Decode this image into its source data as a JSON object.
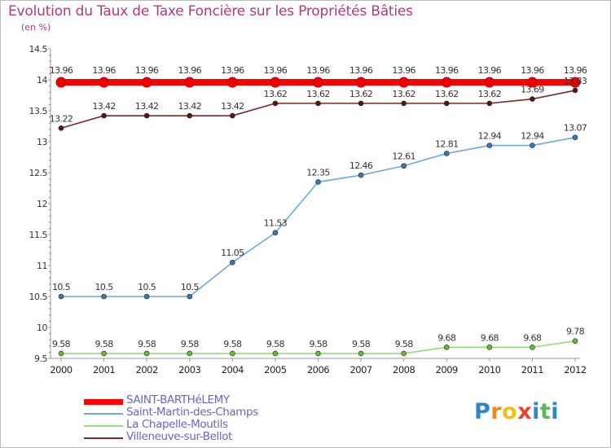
{
  "title": "Evolution du Taux de Taxe Foncière sur les Propriétés Bâties",
  "unit": "(en %)",
  "logo": {
    "text": "Proxiti",
    "letters": [
      "P",
      "r",
      "o",
      "x",
      "i",
      "t",
      "i"
    ],
    "colors": [
      "#2f86c8",
      "#f08a1c",
      "#e8c31a",
      "#e8452c",
      "#2f86c8",
      "#5cb85c",
      "#2f86c8"
    ]
  },
  "chart_data": {
    "type": "line",
    "title": "Evolution du Taux de Taxe Foncière sur les Propriétés Bâties",
    "ylabel": "(en %)",
    "xlabel": "",
    "ylim": [
      9.5,
      14.5
    ],
    "yticks": [
      "9.5",
      "10",
      "10.5",
      "11",
      "11.5",
      "12",
      "12.5",
      "13",
      "13.5",
      "14",
      "14.5"
    ],
    "categories": [
      "2000",
      "2001",
      "2002",
      "2003",
      "2004",
      "2005",
      "2006",
      "2007",
      "2008",
      "2009",
      "2010",
      "2011",
      "2012"
    ],
    "series": [
      {
        "name": "SAINT-BARTHéLEMY",
        "color": "#ff0000",
        "dot": "#ee0000",
        "thick": true,
        "values": [
          13.96,
          13.96,
          13.96,
          13.96,
          13.96,
          13.96,
          13.96,
          13.96,
          13.96,
          13.96,
          13.96,
          13.96,
          13.96
        ],
        "labels": [
          "13.96",
          "13.96",
          "13.96",
          "13.96",
          "13.96",
          "13.96",
          "13.96",
          "13.96",
          "13.96",
          "13.96",
          "13.96",
          "13.96",
          "13.96"
        ]
      },
      {
        "name": "Saint-Martin-des-Champs",
        "color": "#6fa8dc",
        "dot": "#3c78b4",
        "thick": false,
        "values": [
          10.5,
          10.5,
          10.5,
          10.5,
          11.05,
          11.53,
          12.35,
          12.46,
          12.61,
          12.81,
          12.94,
          12.94,
          13.07
        ],
        "labels": [
          "10.5",
          "10.5",
          "10.5",
          "10.5",
          "11.05",
          "11.53",
          "12.35",
          "12.46",
          "12.61",
          "12.81",
          "12.94",
          "12.94",
          "13.07"
        ]
      },
      {
        "name": "La Chapelle-Moutils",
        "color": "#99dd77",
        "dot": "#66bb33",
        "thick": false,
        "values": [
          9.58,
          9.58,
          9.58,
          9.58,
          9.58,
          9.58,
          9.58,
          9.58,
          9.58,
          9.68,
          9.68,
          9.68,
          9.78
        ],
        "labels": [
          "9.58",
          "9.58",
          "9.58",
          "9.58",
          "9.58",
          "9.58",
          "9.58",
          "9.58",
          "9.58",
          "9.68",
          "9.68",
          "9.68",
          "9.78"
        ]
      },
      {
        "name": "Villeneuve-sur-Bellot",
        "color": "#7a2a2a",
        "dot": "#5a1515",
        "thick": false,
        "values": [
          13.22,
          13.42,
          13.42,
          13.42,
          13.42,
          13.62,
          13.62,
          13.62,
          13.62,
          13.62,
          13.62,
          13.69,
          13.83
        ],
        "labels": [
          "13.22",
          "13.42",
          "13.42",
          "13.42",
          "13.42",
          "13.62",
          "13.62",
          "13.62",
          "13.62",
          "13.62",
          "13.62",
          "13.69",
          "13.83"
        ]
      }
    ],
    "legend": {
      "position": "bottom-left"
    },
    "grid": false
  }
}
